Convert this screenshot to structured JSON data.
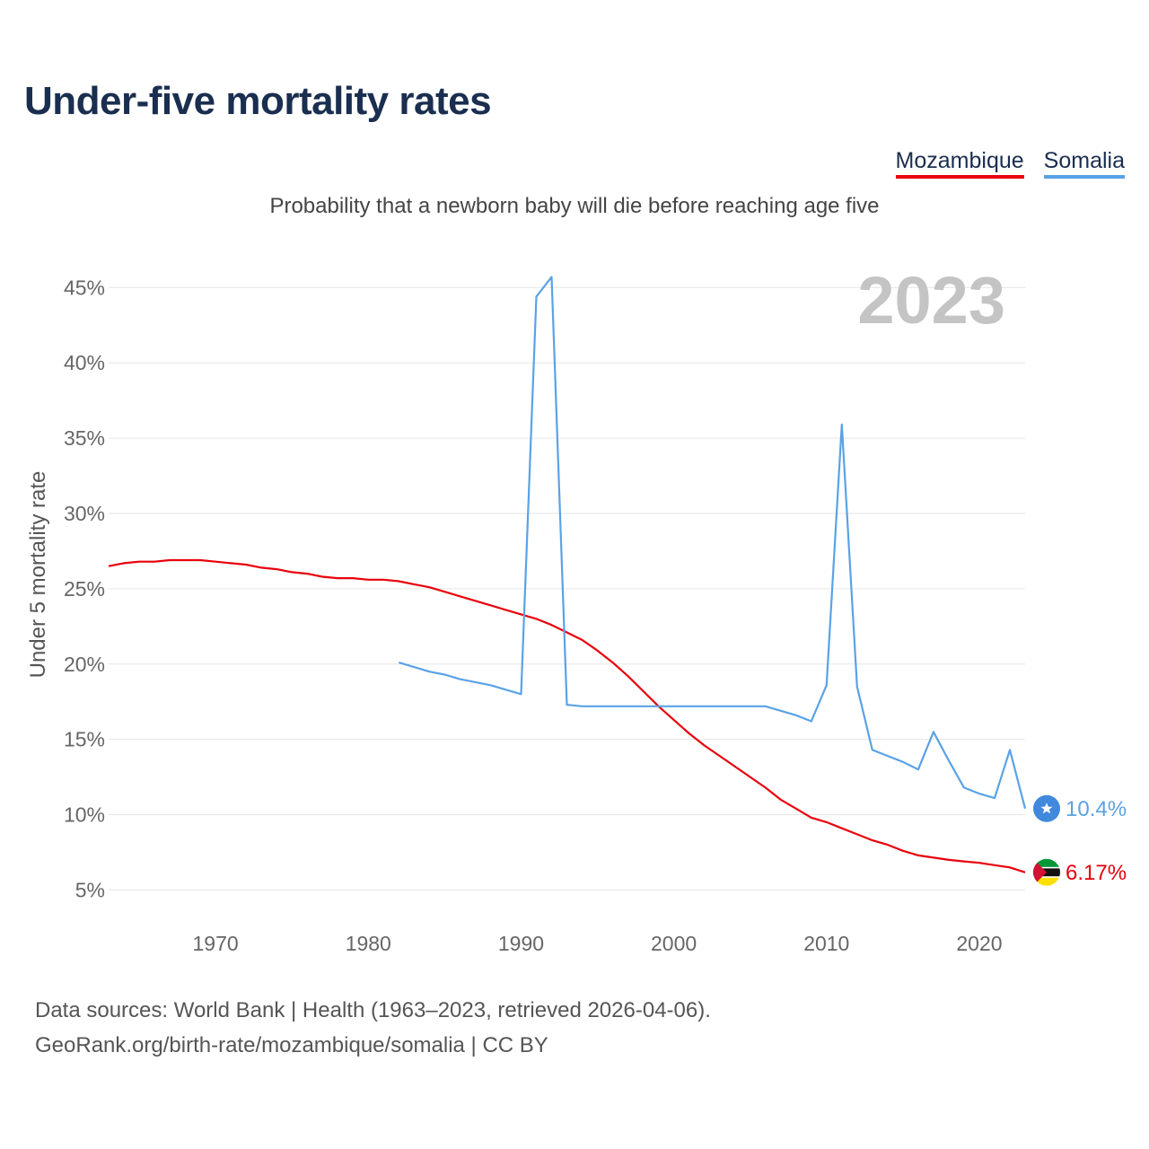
{
  "title": "Under-five mortality rates",
  "subtitle": "Probability that a newborn baby will die before reaching age five",
  "legend": [
    {
      "label": "Mozambique",
      "color": "#e8000b"
    },
    {
      "label": "Somalia",
      "color": "#5aa2e6"
    }
  ],
  "source_line1": "Data sources: World Bank | Health (1963–2023, retrieved 2026-04-06).",
  "source_line2": "GeoRank.org/birth-rate/mozambique/somalia | CC BY",
  "icons": {
    "somalia": "somalia-flag-icon",
    "mozambique": "mozambique-flag-icon"
  },
  "chart_data": {
    "type": "line",
    "year_label": "2023",
    "ylabel": "Under 5 mortality rate",
    "xlim": [
      1963,
      2023
    ],
    "ylim": [
      3,
      48
    ],
    "yticks": [
      5,
      10,
      15,
      20,
      25,
      30,
      35,
      40,
      45
    ],
    "ytick_labels": [
      "5%",
      "10%",
      "15%",
      "20%",
      "25%",
      "30%",
      "35%",
      "40%",
      "45%"
    ],
    "xticks": [
      1970,
      1980,
      1990,
      2000,
      2010,
      2020
    ],
    "xtick_labels": [
      "1970",
      "1980",
      "1990",
      "2000",
      "2010",
      "2020"
    ],
    "series": [
      {
        "name": "Mozambique",
        "color": "#e8000b",
        "end_label": "6.17%",
        "points": [
          [
            1963,
            26.5
          ],
          [
            1964,
            26.7
          ],
          [
            1965,
            26.8
          ],
          [
            1966,
            26.8
          ],
          [
            1967,
            26.9
          ],
          [
            1968,
            26.9
          ],
          [
            1969,
            26.9
          ],
          [
            1970,
            26.8
          ],
          [
            1971,
            26.7
          ],
          [
            1972,
            26.6
          ],
          [
            1973,
            26.4
          ],
          [
            1974,
            26.3
          ],
          [
            1975,
            26.1
          ],
          [
            1976,
            26.0
          ],
          [
            1977,
            25.8
          ],
          [
            1978,
            25.7
          ],
          [
            1979,
            25.7
          ],
          [
            1980,
            25.6
          ],
          [
            1981,
            25.6
          ],
          [
            1982,
            25.5
          ],
          [
            1983,
            25.3
          ],
          [
            1984,
            25.1
          ],
          [
            1985,
            24.8
          ],
          [
            1986,
            24.5
          ],
          [
            1987,
            24.2
          ],
          [
            1988,
            23.9
          ],
          [
            1989,
            23.6
          ],
          [
            1990,
            23.3
          ],
          [
            1991,
            23.0
          ],
          [
            1992,
            22.6
          ],
          [
            1993,
            22.1
          ],
          [
            1994,
            21.6
          ],
          [
            1995,
            20.9
          ],
          [
            1996,
            20.1
          ],
          [
            1997,
            19.2
          ],
          [
            1998,
            18.2
          ],
          [
            1999,
            17.2
          ],
          [
            2000,
            16.3
          ],
          [
            2001,
            15.4
          ],
          [
            2002,
            14.6
          ],
          [
            2003,
            13.9
          ],
          [
            2004,
            13.2
          ],
          [
            2005,
            12.5
          ],
          [
            2006,
            11.8
          ],
          [
            2007,
            11.0
          ],
          [
            2008,
            10.4
          ],
          [
            2009,
            9.8
          ],
          [
            2010,
            9.5
          ],
          [
            2011,
            9.1
          ],
          [
            2012,
            8.7
          ],
          [
            2013,
            8.3
          ],
          [
            2014,
            8.0
          ],
          [
            2015,
            7.6
          ],
          [
            2016,
            7.3
          ],
          [
            2017,
            7.15
          ],
          [
            2018,
            7.0
          ],
          [
            2019,
            6.9
          ],
          [
            2020,
            6.8
          ],
          [
            2021,
            6.65
          ],
          [
            2022,
            6.5
          ],
          [
            2023,
            6.17
          ]
        ]
      },
      {
        "name": "Somalia",
        "color": "#5aa2e6",
        "end_label": "10.4%",
        "points": [
          [
            1982,
            20.1
          ],
          [
            1983,
            19.8
          ],
          [
            1984,
            19.5
          ],
          [
            1985,
            19.3
          ],
          [
            1986,
            19.0
          ],
          [
            1987,
            18.8
          ],
          [
            1988,
            18.6
          ],
          [
            1989,
            18.3
          ],
          [
            1990,
            18.0
          ],
          [
            1991,
            44.4
          ],
          [
            1992,
            45.7
          ],
          [
            1993,
            17.3
          ],
          [
            1994,
            17.2
          ],
          [
            1995,
            17.2
          ],
          [
            1996,
            17.2
          ],
          [
            1997,
            17.2
          ],
          [
            1998,
            17.2
          ],
          [
            1999,
            17.2
          ],
          [
            2000,
            17.2
          ],
          [
            2001,
            17.2
          ],
          [
            2002,
            17.2
          ],
          [
            2003,
            17.2
          ],
          [
            2004,
            17.2
          ],
          [
            2005,
            17.2
          ],
          [
            2006,
            17.2
          ],
          [
            2007,
            16.9
          ],
          [
            2008,
            16.6
          ],
          [
            2009,
            16.2
          ],
          [
            2010,
            18.6
          ],
          [
            2011,
            35.9
          ],
          [
            2012,
            18.5
          ],
          [
            2013,
            14.3
          ],
          [
            2014,
            13.9
          ],
          [
            2015,
            13.5
          ],
          [
            2016,
            13.0
          ],
          [
            2017,
            15.5
          ],
          [
            2018,
            13.6
          ],
          [
            2019,
            11.8
          ],
          [
            2020,
            11.4
          ],
          [
            2021,
            11.1
          ],
          [
            2022,
            14.3
          ],
          [
            2023,
            10.4
          ]
        ]
      }
    ]
  }
}
